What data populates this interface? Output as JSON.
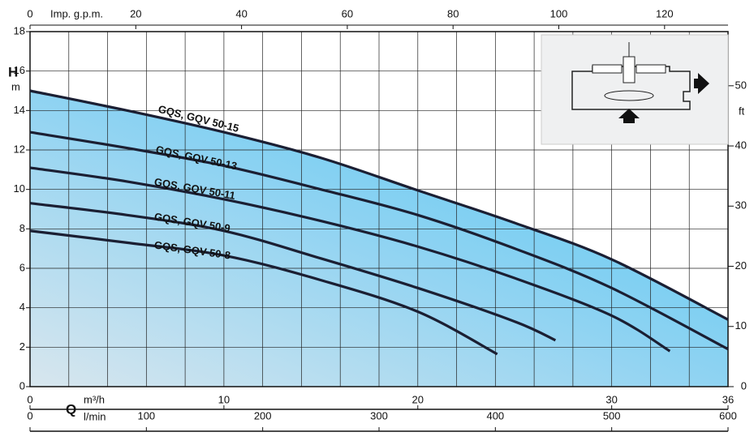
{
  "chart_data": {
    "type": "line",
    "x_label": "Q",
    "x_unit": "m³/h",
    "x2_unit": "l/min",
    "x3_unit": "Imp. g.p.m.",
    "y_label": "H",
    "y_unit": "m",
    "y2_unit": "ft",
    "xlim": [
      0,
      36
    ],
    "xticks": [
      0,
      10,
      20,
      30,
      36
    ],
    "x2lim": [
      0,
      600
    ],
    "x2ticks": [
      0,
      100,
      200,
      300,
      400,
      500,
      600
    ],
    "x3lim": [
      0,
      132
    ],
    "x3ticks": [
      0,
      20,
      40,
      60,
      80,
      100,
      120
    ],
    "ylim": [
      0,
      18
    ],
    "yticks": [
      0,
      2,
      4,
      6,
      8,
      10,
      12,
      14,
      16,
      18
    ],
    "y2lim": [
      0,
      59
    ],
    "y2ticks": [
      0,
      10,
      20,
      30,
      40,
      50
    ],
    "grid": true,
    "series": [
      {
        "name": "GQS, GQV 50-15",
        "color": "#1b1f33",
        "x": [
          0,
          5,
          10,
          15,
          20,
          25,
          30,
          36
        ],
        "values": [
          15.0,
          14.0,
          12.9,
          11.6,
          9.95,
          8.3,
          6.45,
          3.4
        ]
      },
      {
        "name": "GQS, GQV 50-13",
        "color": "#1b1f33",
        "x": [
          0,
          5,
          10,
          15,
          20,
          25,
          30,
          36
        ],
        "values": [
          12.9,
          12.1,
          11.2,
          10.0,
          8.7,
          7.0,
          5.0,
          1.9
        ]
      },
      {
        "name": "GQS, GQV 50-11",
        "color": "#1b1f33",
        "x": [
          0,
          5,
          10,
          15,
          20,
          25,
          30,
          33.0
        ],
        "values": [
          11.1,
          10.4,
          9.5,
          8.4,
          7.1,
          5.5,
          3.6,
          1.8
        ]
      },
      {
        "name": "GQS, GQV 50-9",
        "color": "#1b1f33",
        "x": [
          0,
          5,
          10,
          15,
          20,
          25,
          27.1
        ],
        "values": [
          9.3,
          8.7,
          7.9,
          6.5,
          5.0,
          3.3,
          2.35
        ]
      },
      {
        "name": "GQS, GQV 50-8",
        "color": "#1b1f33",
        "x": [
          0,
          5,
          10,
          15,
          20,
          24.1
        ],
        "values": [
          7.9,
          7.3,
          6.65,
          5.4,
          3.8,
          1.65
        ]
      }
    ]
  }
}
